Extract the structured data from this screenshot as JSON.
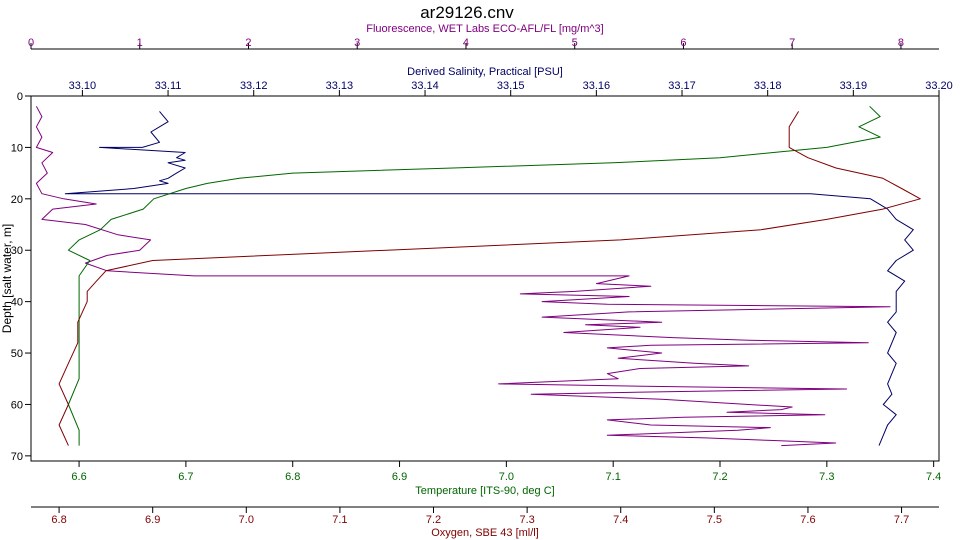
{
  "chart_data": {
    "type": "line",
    "title": "ar29126.cnv",
    "ylabel": "Depth [salt water, m]",
    "y_ticks": [
      0,
      10,
      20,
      30,
      40,
      50,
      60,
      70
    ],
    "ylim": [
      0,
      71
    ],
    "y_inverted": true,
    "grid": false,
    "axes": [
      {
        "id": "fluor",
        "label": "Fluorescence, WET Labs ECO-AFL/FL [mg/m^3]",
        "color": "#800080",
        "range": [
          0,
          8.35
        ],
        "ticks": [
          0,
          1,
          2,
          3,
          4,
          5,
          6,
          7,
          8
        ]
      },
      {
        "id": "sal",
        "label": "Derived Salinity, Practical [PSU]",
        "color": "#000066",
        "range": [
          33.094,
          33.2
        ],
        "ticks": [
          "33.10",
          "33.11",
          "33.12",
          "33.13",
          "33.14",
          "33.15",
          "33.16",
          "33.17",
          "33.18",
          "33.19",
          "33.20"
        ]
      },
      {
        "id": "temp",
        "label": "Temperature [ITS-90, deg C]",
        "color": "#006600",
        "range": [
          6.555,
          7.405
        ],
        "ticks": [
          "6.6",
          "6.7",
          "6.8",
          "6.9",
          "7.0",
          "7.1",
          "7.2",
          "7.3",
          "7.4"
        ]
      },
      {
        "id": "oxy",
        "label": "Oxygen, SBE 43 [ml/l]",
        "color": "#800000",
        "range": [
          6.77,
          7.74
        ],
        "ticks": [
          "6.8",
          "6.9",
          "7.0",
          "7.1",
          "7.2",
          "7.3",
          "7.4",
          "7.5",
          "7.6",
          "7.7"
        ]
      }
    ],
    "series": [
      {
        "axis": "fluor",
        "color": "#800080",
        "points": [
          [
            0.05,
            2
          ],
          [
            0.1,
            4
          ],
          [
            0.05,
            6
          ],
          [
            0.1,
            8
          ],
          [
            0.05,
            10
          ],
          [
            0.2,
            11
          ],
          [
            0.1,
            13
          ],
          [
            0.15,
            15
          ],
          [
            0.05,
            17
          ],
          [
            0.1,
            19
          ],
          [
            0.3,
            20
          ],
          [
            0.6,
            21
          ],
          [
            0.2,
            22
          ],
          [
            0.1,
            24
          ],
          [
            0.5,
            25
          ],
          [
            0.8,
            27
          ],
          [
            1.1,
            28
          ],
          [
            1.0,
            30
          ],
          [
            0.7,
            31
          ],
          [
            0.5,
            32.5
          ],
          [
            0.7,
            34
          ],
          [
            1.5,
            35
          ],
          [
            3.0,
            35
          ],
          [
            4.5,
            35
          ],
          [
            5.5,
            35
          ],
          [
            5.2,
            36.5
          ],
          [
            5.7,
            37
          ],
          [
            5.0,
            38
          ],
          [
            4.5,
            38.5
          ],
          [
            5.5,
            39
          ],
          [
            4.7,
            40
          ],
          [
            5.3,
            40.5
          ],
          [
            7.9,
            41
          ],
          [
            5.5,
            42
          ],
          [
            4.7,
            43
          ],
          [
            5.8,
            44
          ],
          [
            5.1,
            44.5
          ],
          [
            5.6,
            45
          ],
          [
            4.9,
            46
          ],
          [
            5.9,
            47
          ],
          [
            6.6,
            47.5
          ],
          [
            7.7,
            48
          ],
          [
            5.7,
            48.5
          ],
          [
            5.3,
            49
          ],
          [
            5.8,
            50
          ],
          [
            5.4,
            51
          ],
          [
            6.1,
            52
          ],
          [
            6.6,
            52.5
          ],
          [
            5.6,
            53
          ],
          [
            5.3,
            54
          ],
          [
            5.4,
            55
          ],
          [
            4.3,
            56
          ],
          [
            5.8,
            56.5
          ],
          [
            7.5,
            57
          ],
          [
            5.9,
            57.5
          ],
          [
            4.6,
            58
          ],
          [
            5.8,
            59
          ],
          [
            6.6,
            60
          ],
          [
            7.0,
            60.5
          ],
          [
            6.9,
            61
          ],
          [
            6.4,
            61.5
          ],
          [
            7.3,
            62
          ],
          [
            6.0,
            62.5
          ],
          [
            5.3,
            63
          ],
          [
            5.7,
            64
          ],
          [
            6.8,
            64.5
          ],
          [
            6.5,
            65
          ],
          [
            5.3,
            66
          ],
          [
            6.2,
            66.5
          ],
          [
            6.8,
            67
          ],
          [
            7.4,
            67.5
          ],
          [
            6.9,
            68
          ]
        ]
      },
      {
        "axis": "sal",
        "color": "#000066",
        "points": [
          [
            33.109,
            3
          ],
          [
            33.11,
            5
          ],
          [
            33.108,
            7
          ],
          [
            33.109,
            9
          ],
          [
            33.107,
            10
          ],
          [
            33.102,
            10
          ],
          [
            33.112,
            11
          ],
          [
            33.111,
            12
          ],
          [
            33.112,
            12.5
          ],
          [
            33.11,
            13
          ],
          [
            33.112,
            14
          ],
          [
            33.111,
            15
          ],
          [
            33.11,
            16
          ],
          [
            33.109,
            16.5
          ],
          [
            33.11,
            17
          ],
          [
            33.106,
            18
          ],
          [
            33.098,
            19
          ],
          [
            33.15,
            19
          ],
          [
            33.17,
            19
          ],
          [
            33.185,
            19
          ],
          [
            33.192,
            20
          ],
          [
            33.194,
            22
          ],
          [
            33.195,
            24
          ],
          [
            33.197,
            26
          ],
          [
            33.196,
            28
          ],
          [
            33.197,
            30
          ],
          [
            33.195,
            32
          ],
          [
            33.194,
            34
          ],
          [
            33.196,
            36
          ],
          [
            33.195,
            38
          ],
          [
            33.195,
            40
          ],
          [
            33.195,
            42
          ],
          [
            33.194,
            44
          ],
          [
            33.195,
            46
          ],
          [
            33.1945,
            48
          ],
          [
            33.194,
            50
          ],
          [
            33.195,
            52
          ],
          [
            33.1945,
            54
          ],
          [
            33.194,
            56
          ],
          [
            33.1945,
            58
          ],
          [
            33.1935,
            60
          ],
          [
            33.195,
            62
          ],
          [
            33.194,
            64
          ],
          [
            33.1935,
            66
          ],
          [
            33.193,
            68
          ]
        ]
      },
      {
        "axis": "temp",
        "color": "#006600",
        "points": [
          [
            7.34,
            2
          ],
          [
            7.35,
            4
          ],
          [
            7.33,
            6
          ],
          [
            7.35,
            8
          ],
          [
            7.3,
            10
          ],
          [
            7.25,
            11
          ],
          [
            7.2,
            12
          ],
          [
            7.1,
            13
          ],
          [
            6.95,
            14
          ],
          [
            6.8,
            15
          ],
          [
            6.75,
            16
          ],
          [
            6.72,
            17
          ],
          [
            6.7,
            18
          ],
          [
            6.67,
            20
          ],
          [
            6.66,
            22
          ],
          [
            6.63,
            24
          ],
          [
            6.62,
            26
          ],
          [
            6.6,
            28
          ],
          [
            6.59,
            30
          ],
          [
            6.61,
            32
          ],
          [
            6.6,
            35
          ],
          [
            6.6,
            40
          ],
          [
            6.6,
            45
          ],
          [
            6.6,
            50
          ],
          [
            6.6,
            55
          ],
          [
            6.59,
            60
          ],
          [
            6.6,
            65
          ],
          [
            6.6,
            68
          ]
        ]
      },
      {
        "axis": "oxy",
        "color": "#800000",
        "points": [
          [
            7.59,
            3
          ],
          [
            7.58,
            6
          ],
          [
            7.58,
            10
          ],
          [
            7.6,
            12
          ],
          [
            7.63,
            14
          ],
          [
            7.68,
            16
          ],
          [
            7.7,
            18
          ],
          [
            7.72,
            20
          ],
          [
            7.68,
            22
          ],
          [
            7.62,
            24
          ],
          [
            7.55,
            26
          ],
          [
            7.4,
            28
          ],
          [
            7.15,
            30
          ],
          [
            6.9,
            32
          ],
          [
            6.85,
            34
          ],
          [
            6.84,
            36
          ],
          [
            6.83,
            38
          ],
          [
            6.83,
            40
          ],
          [
            6.82,
            44
          ],
          [
            6.82,
            48
          ],
          [
            6.81,
            52
          ],
          [
            6.8,
            56
          ],
          [
            6.81,
            60
          ],
          [
            6.8,
            64
          ],
          [
            6.81,
            68
          ]
        ]
      }
    ]
  }
}
